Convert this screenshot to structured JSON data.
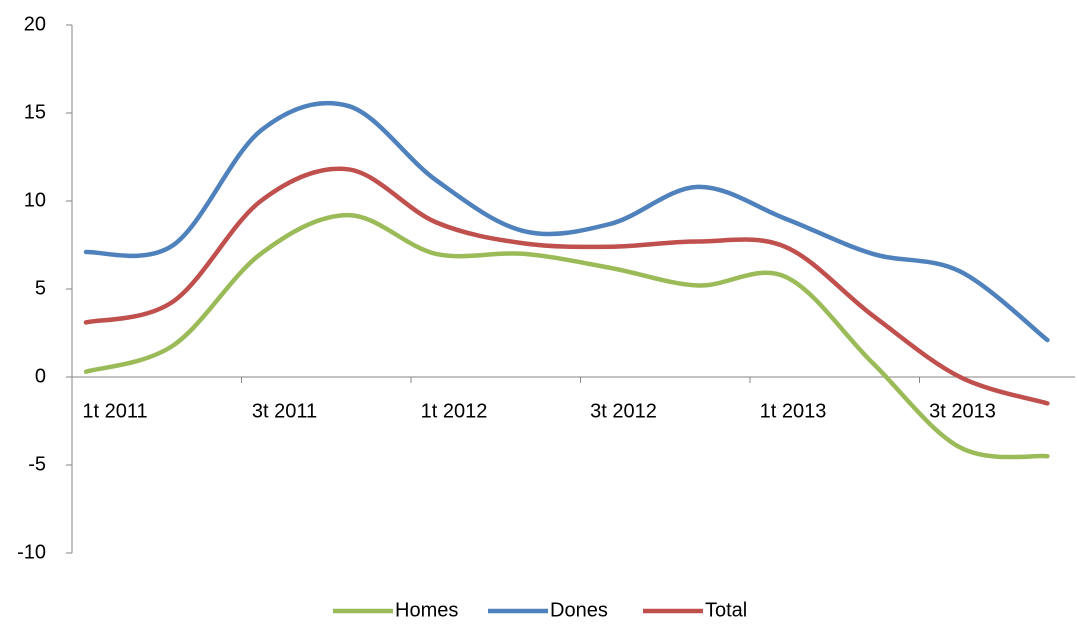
{
  "chart_data": {
    "type": "line",
    "categories": [
      "1t 2011",
      null,
      "3t 2011",
      null,
      "1t 2012",
      null,
      "3t 2012",
      null,
      "1t 2013",
      null,
      "3t 2013",
      null
    ],
    "series": [
      {
        "name": "Homes",
        "color": "#9bbb59",
        "values": [
          0.3,
          1.8,
          7.0,
          9.2,
          7.0,
          7.0,
          6.2,
          5.2,
          5.7,
          0.8,
          -4.0,
          -4.5
        ]
      },
      {
        "name": "Dones",
        "color": "#4f81bd",
        "values": [
          7.1,
          7.5,
          14.0,
          15.4,
          11.2,
          8.3,
          8.7,
          10.8,
          9.0,
          7.0,
          6.0,
          2.1
        ]
      },
      {
        "name": "Total",
        "color": "#c0504d",
        "values": [
          3.1,
          4.3,
          10.0,
          11.8,
          8.8,
          7.6,
          7.4,
          7.7,
          7.4,
          3.5,
          0.0,
          -1.5
        ]
      }
    ],
    "ylim": [
      -10,
      20
    ],
    "yticks": [
      -10,
      -5,
      0,
      5,
      10,
      15,
      20
    ],
    "grid": false,
    "legend": "bottom"
  }
}
